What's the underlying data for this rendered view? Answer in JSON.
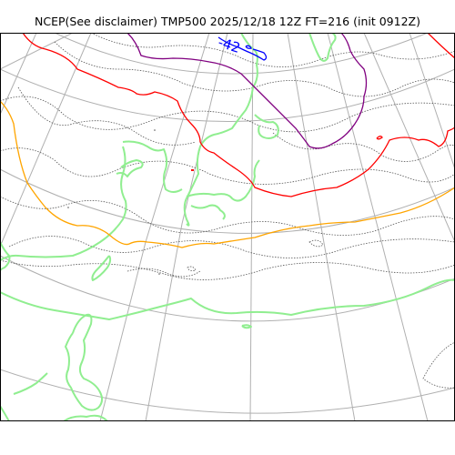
{
  "title": "NCEP(See disclaimer) TMP500 2025/12/18 12Z FT=216 (init 0912Z)",
  "contour_labels": [
    {
      "text": "-42",
      "color": "#0000ff"
    }
  ],
  "colors": {
    "background": "#ffffff",
    "frame": "#000000",
    "graticule": "#b0b0b0",
    "coastline": "#90ee90",
    "isotherm_minor": "#555555",
    "isotherm_red": "#ff0000",
    "isotherm_orange": "#ffa500",
    "isotherm_purple": "#800080",
    "isotherm_blue": "#0000ff"
  }
}
